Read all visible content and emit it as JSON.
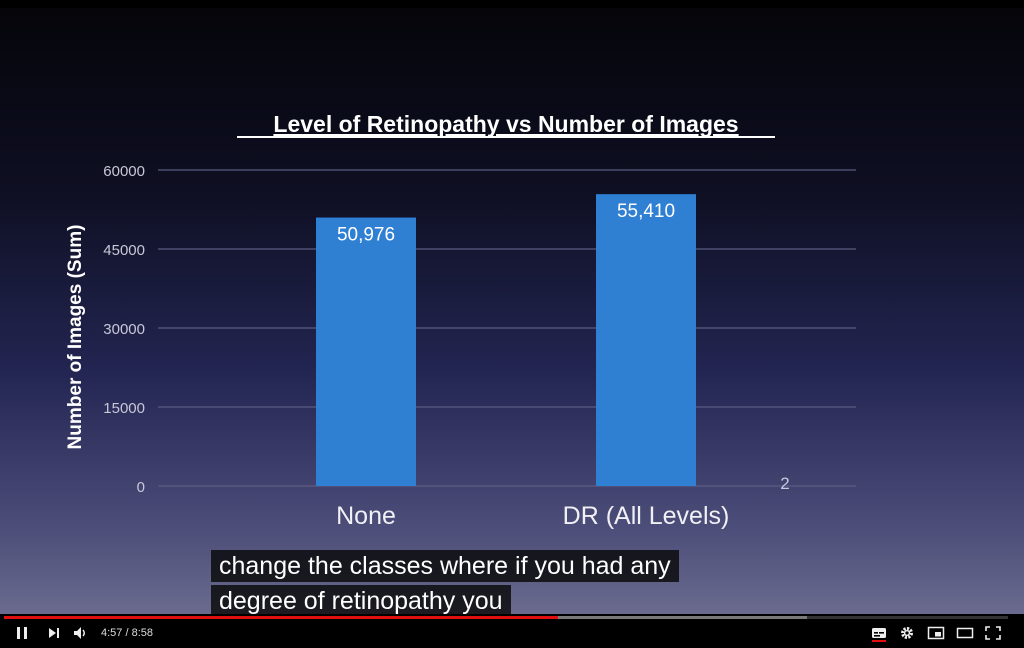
{
  "chart_data": {
    "type": "bar",
    "title": "Level of Retinopathy vs Number of Images",
    "ylabel": "Number of Images (Sum)",
    "xlabel": "",
    "categories": [
      "None",
      "DR (All Levels)"
    ],
    "values": [
      50976,
      55410
    ],
    "value_labels": [
      "50,976",
      "55,410"
    ],
    "y_ticks": [
      "60000",
      "45000",
      "30000",
      "15000",
      "0"
    ],
    "y_tick_values": [
      60000,
      45000,
      30000,
      15000,
      0
    ],
    "ylim": [
      0,
      60000
    ],
    "grid": true,
    "bar_color": "#2f7fd3",
    "annotation": "2"
  },
  "captions": {
    "line1": "change the classes where if you had any",
    "line2": "degree of retinopathy you"
  },
  "player": {
    "time_display": "4:57 / 8:58",
    "progress_fraction": 0.552,
    "buffered_fraction": 0.8,
    "icons": {
      "play_pause": "pause-icon",
      "next": "next-icon",
      "volume": "volume-icon",
      "subtitles": "subtitles-icon",
      "settings": "gear-icon",
      "miniplayer": "miniplayer-icon",
      "theater": "theater-mode-icon",
      "fullscreen": "fullscreen-icon"
    },
    "accent_color": "#e01010"
  }
}
